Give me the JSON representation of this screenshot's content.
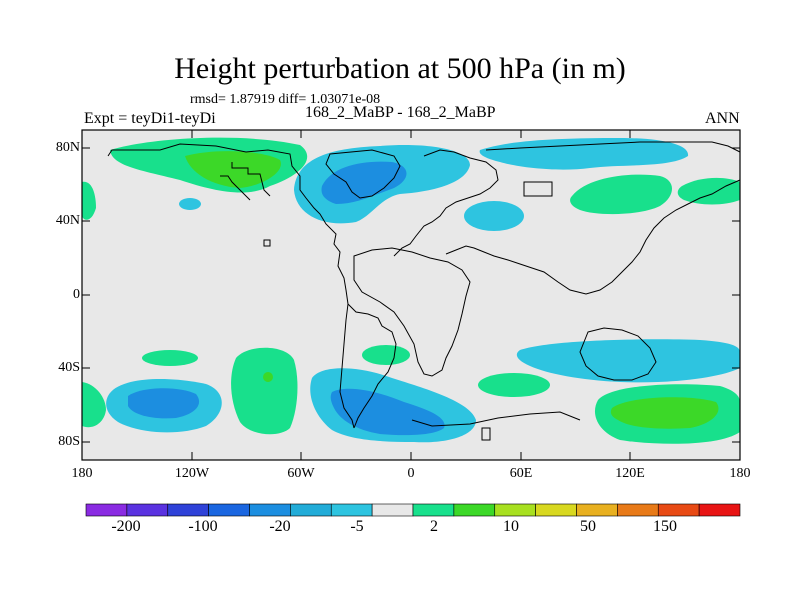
{
  "title": "Height perturbation at 500 hPa (in m)",
  "stats": "rmsd= 1.87919  diff= 1.03071e-08",
  "expt_label": "Expt = teyDi1-teyDi",
  "center_label": "168_2_MaBP - 168_2_MaBP",
  "season": "ANN",
  "y_ticks": [
    "80N",
    "40N",
    "0",
    "40S",
    "80S"
  ],
  "x_ticks": [
    "180",
    "120W",
    "60W",
    "0",
    "60E",
    "120E",
    "180"
  ],
  "colorbar": {
    "colors": [
      "#8a2be2",
      "#5a32e0",
      "#2f42d8",
      "#1a66e0",
      "#1c8ee0",
      "#22acd8",
      "#2ec4e0",
      "#e8e8e8",
      "#18e08c",
      "#3cd828",
      "#a8e020",
      "#d8d820",
      "#e8b020",
      "#e87a18",
      "#e84a14",
      "#e81414"
    ],
    "labels": [
      "-200",
      "-100",
      "-20",
      "-5",
      "2",
      "10",
      "50",
      "150"
    ]
  },
  "colors": {
    "background": "#e8e8e8",
    "pos_light": "#18e08c",
    "pos_mid": "#3cd828",
    "neg_light": "#2ec4e0",
    "neg_mid": "#1c8ee0",
    "neg_dark": "#1a66e0"
  }
}
